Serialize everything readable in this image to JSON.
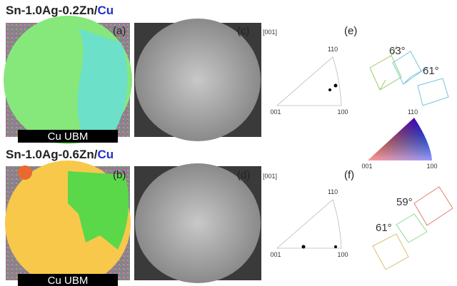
{
  "rows": [
    {
      "title": {
        "alloy": "Sn-1.0Ag-0.2Zn/",
        "substrate": "Cu"
      },
      "ebsd": {
        "label": "(a)",
        "ubm": "Cu UBM"
      },
      "sem": {
        "label": "(c)"
      },
      "pole_figure": {
        "direction": "[001]",
        "corners": [
          "110",
          "001",
          "100"
        ],
        "label": "(e)"
      },
      "angles": [
        "63°",
        "61°"
      ]
    },
    {
      "title": {
        "alloy": "Sn-1.0Ag-0.6Zn/",
        "substrate": "Cu"
      },
      "ebsd": {
        "label": "(b)",
        "ubm": "Cu UBM"
      },
      "sem": {
        "label": "(d)"
      },
      "pole_figure": {
        "direction": "[001]",
        "corners": [
          "110",
          "001",
          "100"
        ],
        "label": "(f)"
      },
      "angles": [
        "59°",
        "61°"
      ]
    }
  ],
  "color_key": {
    "corners": [
      "110",
      "001",
      "100"
    ]
  }
}
